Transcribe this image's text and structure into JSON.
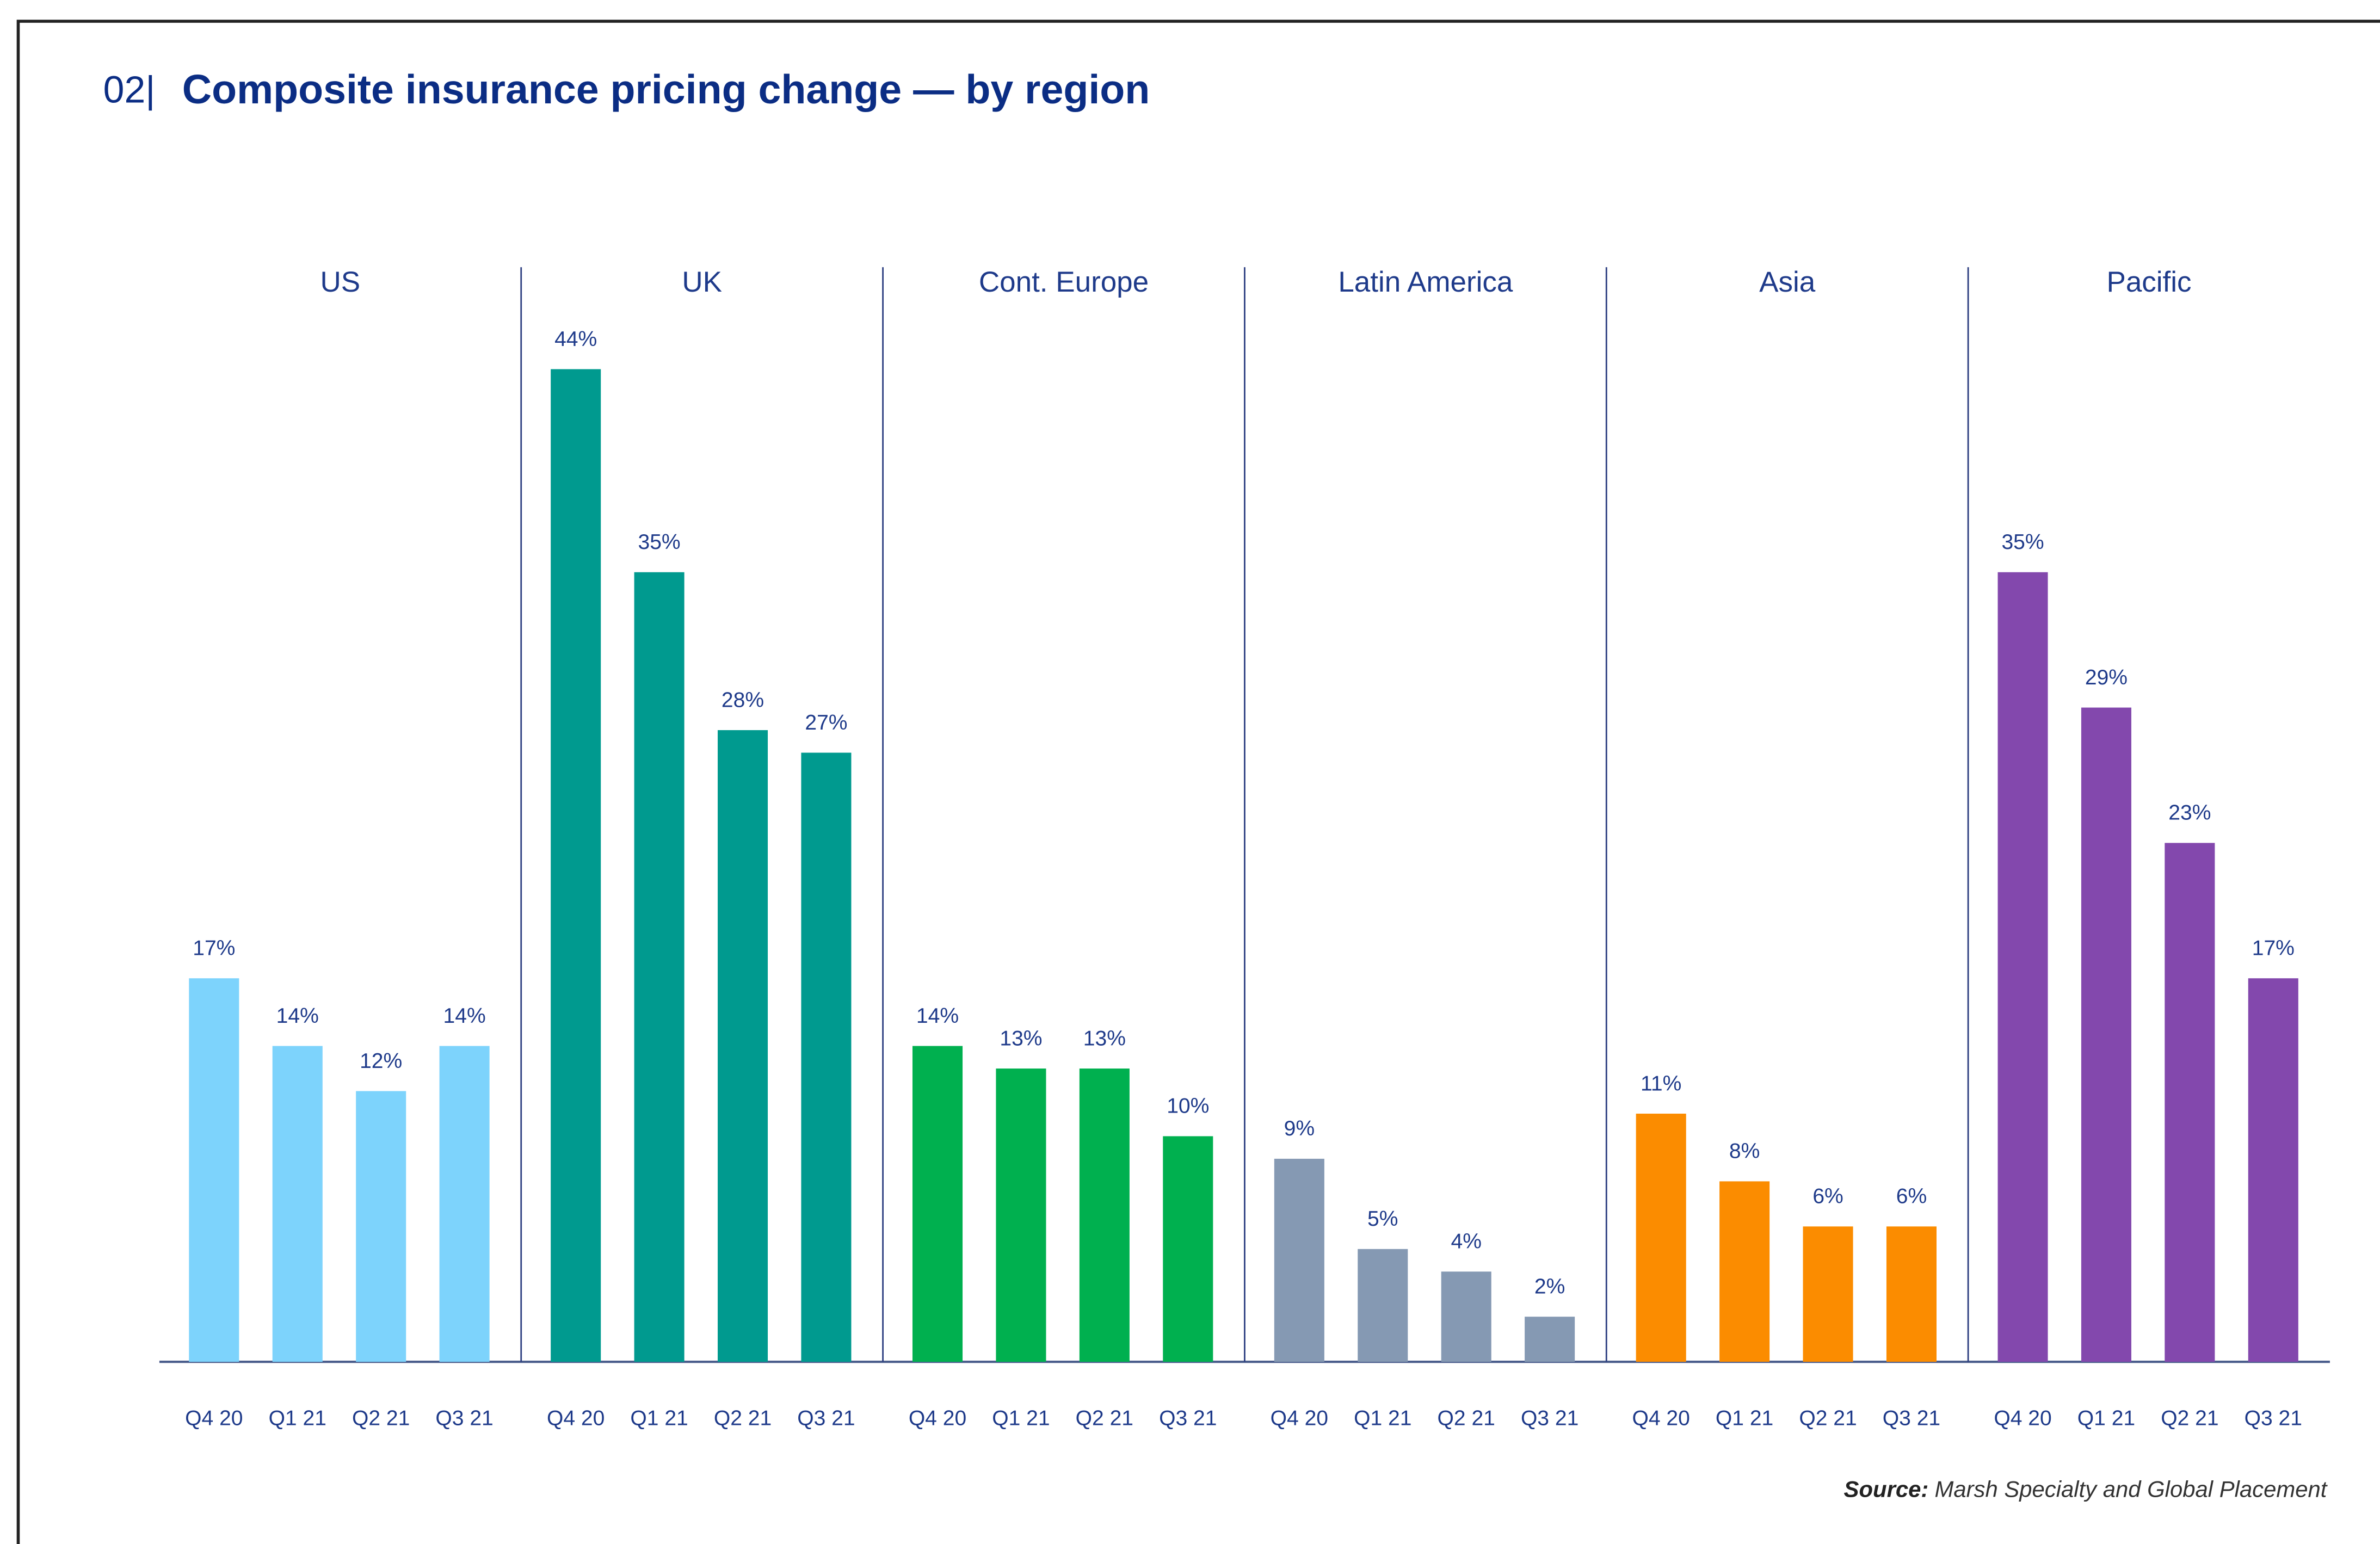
{
  "chart_data": {
    "type": "bar",
    "title_number": "02|",
    "title": "Composite insurance pricing change — by region",
    "panels": [
      {
        "name": "US",
        "color": "#7dd3fc",
        "categories": [
          "Q4 20",
          "Q1 21",
          "Q2 21",
          "Q3 21"
        ],
        "values": [
          17,
          14,
          12,
          14
        ],
        "value_labels": [
          "17%",
          "14%",
          "12%",
          "14%"
        ]
      },
      {
        "name": "UK",
        "color": "#009a8f",
        "categories": [
          "Q4 20",
          "Q1 21",
          "Q2 21",
          "Q3 21"
        ],
        "values": [
          44,
          35,
          28,
          27
        ],
        "value_labels": [
          "44%",
          "35%",
          "28%",
          "27%"
        ]
      },
      {
        "name": "Cont. Europe",
        "color": "#00b04f",
        "categories": [
          "Q4 20",
          "Q1 21",
          "Q2 21",
          "Q3 21"
        ],
        "values": [
          14,
          13,
          13,
          10
        ],
        "value_labels": [
          "14%",
          "13%",
          "13%",
          "10%"
        ]
      },
      {
        "name": "Latin America",
        "color": "#8599b3",
        "categories": [
          "Q4 20",
          "Q1 21",
          "Q2 21",
          "Q3 21"
        ],
        "values": [
          9,
          5,
          4,
          2
        ],
        "value_labels": [
          "9%",
          "5%",
          "4%",
          "2%"
        ]
      },
      {
        "name": "Asia",
        "color": "#fb8c00",
        "categories": [
          "Q4 20",
          "Q1 21",
          "Q2 21",
          "Q3 21"
        ],
        "values": [
          11,
          8,
          6,
          6
        ],
        "value_labels": [
          "11%",
          "8%",
          "6%",
          "6%"
        ]
      },
      {
        "name": "Pacific",
        "color": "#8348ad",
        "categories": [
          "Q4 20",
          "Q1 21",
          "Q2 21",
          "Q3 21"
        ],
        "values": [
          35,
          29,
          23,
          17
        ],
        "value_labels": [
          "35%",
          "29%",
          "23%",
          "17%"
        ]
      }
    ],
    "source_label": "Source:",
    "source": "Marsh Specialty and Global Placement"
  }
}
